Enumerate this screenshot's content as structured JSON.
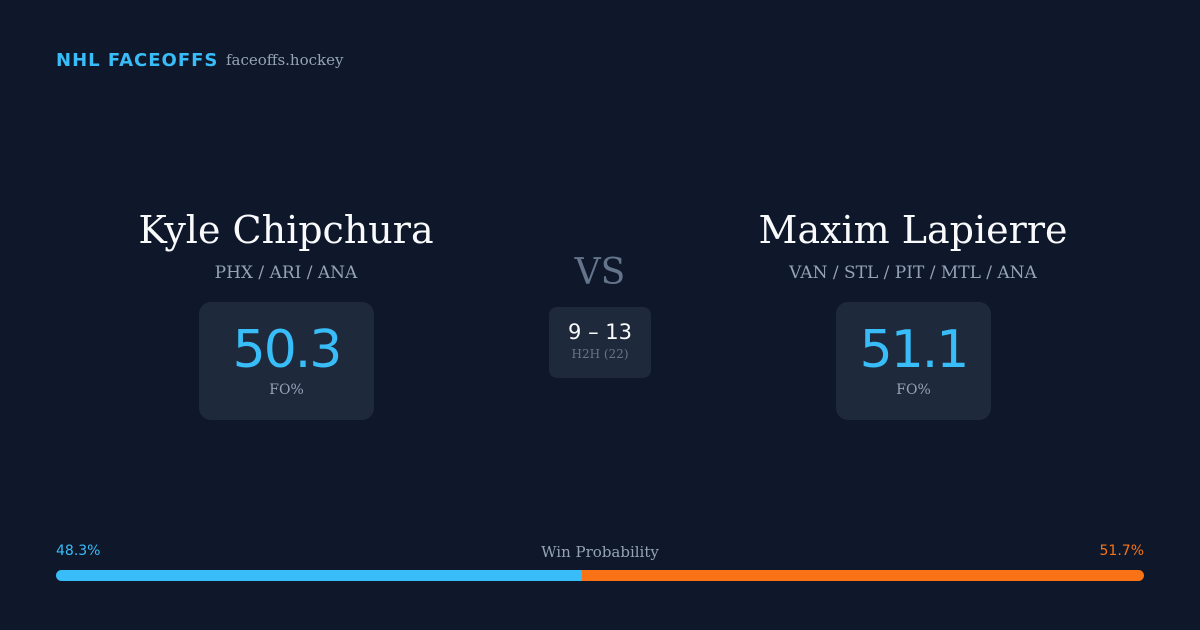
{
  "header": {
    "brand": "NHL FACEOFFS",
    "site": "faceoffs.hockey"
  },
  "players": [
    {
      "name": "Kyle Chipchura",
      "teams": "PHX / ARI / ANA",
      "fo_pct": 50.3,
      "fo_label": "FO%"
    },
    {
      "name": "Maxim Lapierre",
      "teams": "VAN / STL / PIT / MTL / ANA",
      "fo_pct": 51.1,
      "fo_label": "FO%"
    }
  ],
  "versus": "VS",
  "h2h": {
    "score": "9 – 13",
    "label": "H2H (22)"
  },
  "win_probability": {
    "label": "Win Probability",
    "left": {
      "value": 48.3,
      "label": "48.3%",
      "color": "#38bdf8"
    },
    "right": {
      "value": 51.7,
      "label": "51.7%",
      "color": "#f97316"
    }
  }
}
